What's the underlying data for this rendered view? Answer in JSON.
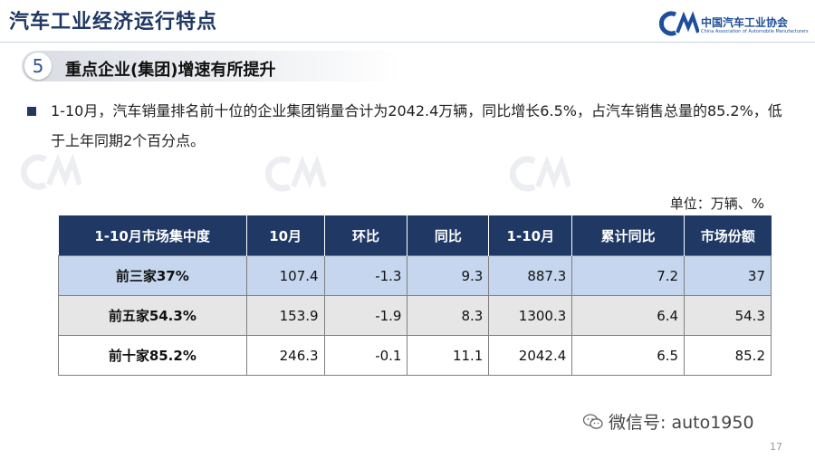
{
  "header": {
    "title": "汽车工业经济运行特点",
    "logo_cn": "中国汽车工业协会",
    "logo_en": "China Association of Automobile Manufacturers"
  },
  "section": {
    "number": "5",
    "title": "重点企业(集团)增速有所提升"
  },
  "summary": "1-10月，汽车销量排名前十位的企业集团销量合计为2042.4万辆，同比增长6.5%，占汽车销售总量的85.2%，低于上年同期2个百分点。",
  "unit_note": "单位：万辆、%",
  "table": {
    "headers": [
      "1-10月市场集中度",
      "10月",
      "环比",
      "同比",
      "1-10月",
      "累计同比",
      "市场份额"
    ],
    "rows": [
      [
        "前三家37%",
        "107.4",
        "-1.3",
        "9.3",
        "887.3",
        "7.2",
        "37"
      ],
      [
        "前五家54.3%",
        "153.9",
        "-1.9",
        "8.3",
        "1300.3",
        "6.4",
        "54.3"
      ],
      [
        "前十家85.2%",
        "246.3",
        "-0.1",
        "11.1",
        "2042.4",
        "6.5",
        "85.2"
      ]
    ]
  },
  "footer": {
    "wechat": "微信号: auto1950",
    "page_number": "17"
  },
  "colors": {
    "header_fill": "#1f3864",
    "row1_fill": "#c5d6ee",
    "row2_fill": "#e6e6e6",
    "row3_fill": "#ffffff"
  }
}
